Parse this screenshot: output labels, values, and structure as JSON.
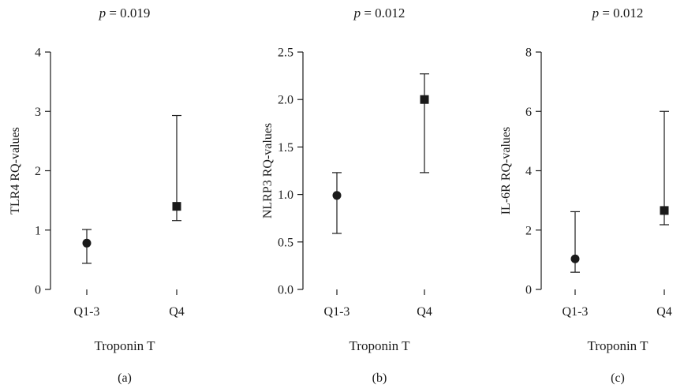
{
  "chart_data": [
    {
      "type": "scatter",
      "panel_label": "(a)",
      "title_prefix": "p",
      "title_value": " = 0.019",
      "ylabel": "TLR4 RQ-values",
      "xlabel": "Troponin T",
      "ylim": [
        0,
        4
      ],
      "yticks": [
        0,
        1,
        2,
        3,
        4
      ],
      "ytick_labels": [
        "0",
        "1",
        "2",
        "3",
        "4"
      ],
      "categories": [
        "Q1-3",
        "Q4"
      ],
      "markers": [
        "circle",
        "square"
      ],
      "values": [
        0.78,
        1.4
      ],
      "err_low": [
        0.44,
        1.16
      ],
      "err_high": [
        1.01,
        2.93
      ]
    },
    {
      "type": "scatter",
      "panel_label": "(b)",
      "title_prefix": "p",
      "title_value": " = 0.012",
      "ylabel": "NLRP3 RQ-values",
      "xlabel": "Troponin T",
      "ylim": [
        0,
        2.5
      ],
      "yticks": [
        0,
        0.5,
        1.0,
        1.5,
        2.0,
        2.5
      ],
      "ytick_labels": [
        "0.0",
        "0.5",
        "1.0",
        "1.5",
        "2.0",
        "2.5"
      ],
      "categories": [
        "Q1-3",
        "Q4"
      ],
      "markers": [
        "circle",
        "square"
      ],
      "values": [
        0.99,
        2.0
      ],
      "err_low": [
        0.59,
        1.23
      ],
      "err_high": [
        1.23,
        2.27
      ]
    },
    {
      "type": "scatter",
      "panel_label": "(c)",
      "title_prefix": "p",
      "title_value": " = 0.012",
      "ylabel": "IL-6R RQ-values",
      "xlabel": "Troponin T",
      "ylim": [
        0,
        8
      ],
      "yticks": [
        0,
        2,
        4,
        6,
        8
      ],
      "ytick_labels": [
        "0",
        "2",
        "4",
        "6",
        "8"
      ],
      "categories": [
        "Q1-3",
        "Q4"
      ],
      "markers": [
        "circle",
        "square"
      ],
      "values": [
        1.03,
        2.66
      ],
      "err_low": [
        0.58,
        2.18
      ],
      "err_high": [
        2.62,
        6.0
      ]
    }
  ]
}
